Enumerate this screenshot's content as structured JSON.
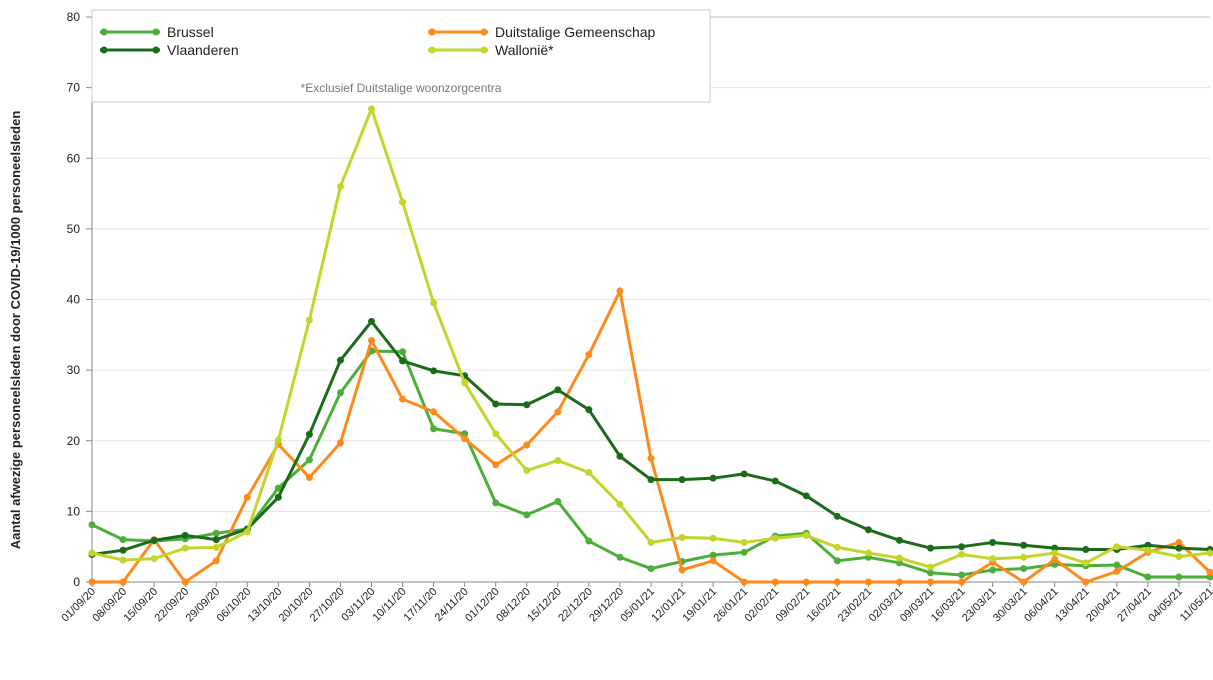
{
  "chart_data": {
    "type": "line",
    "ylabel": "Aantal afwezige personeelsleden door COVID-19/1000 personeelsleden",
    "legend_note": "*Exclusief Duitstalige woonzorgcentra",
    "legend": "upper left",
    "grid": true,
    "categories": [
      "01/09/20",
      "08/09/20",
      "15/09/20",
      "22/09/20",
      "29/09/20",
      "06/10/20",
      "13/10/20",
      "20/10/20",
      "27/10/20",
      "03/11/20",
      "10/11/20",
      "17/11/20",
      "24/11/20",
      "01/12/20",
      "08/12/20",
      "15/12/20",
      "22/12/20",
      "29/12/20",
      "05/01/21",
      "12/01/21",
      "19/01/21",
      "26/01/21",
      "02/02/21",
      "09/02/21",
      "16/02/21",
      "23/02/21",
      "02/03/21",
      "09/03/21",
      "16/03/21",
      "23/03/21",
      "30/03/21",
      "06/04/21",
      "13/04/21",
      "20/04/21",
      "27/04/21",
      "04/05/21",
      "11/05/21"
    ],
    "series": [
      {
        "name": "Brussel",
        "color": "#4caf3a",
        "values": [
          8.1,
          6,
          5.8,
          6.1,
          6.9,
          7.5,
          13.3,
          17.3,
          26.8,
          32.7,
          32.6,
          21.7,
          21,
          11.2,
          9.5,
          11.4,
          5.8,
          3.5,
          1.9,
          2.9,
          3.8,
          4.2,
          6.5,
          6.9,
          3,
          3.5,
          2.7,
          1.3,
          1,
          1.7,
          1.9,
          2.5,
          2.3,
          2.4,
          0.7,
          0.7,
          0.7
        ]
      },
      {
        "name": "Duitstalige Gemeenschap",
        "color": "#ff8a1c",
        "values": [
          0,
          0,
          6,
          0,
          3,
          12,
          19.5,
          14.8,
          19.7,
          34.2,
          25.9,
          24.1,
          20.3,
          16.6,
          19.4,
          24.1,
          32.2,
          41.2,
          17.5,
          1.7,
          3,
          0,
          0,
          0,
          0,
          0,
          0,
          0,
          0,
          2.8,
          0,
          3.2,
          0,
          1.5,
          4.2,
          5.6,
          1.4
        ]
      },
      {
        "name": "Vlaanderen",
        "color": "#1a6b1a",
        "values": [
          3.9,
          4.5,
          5.9,
          6.6,
          6,
          7.5,
          12,
          20.9,
          31.4,
          36.9,
          31.3,
          29.9,
          29.2,
          25.2,
          25.1,
          27.2,
          24.4,
          17.8,
          14.5,
          14.5,
          14.7,
          15.3,
          14.3,
          12.2,
          9.3,
          7.4,
          5.9,
          4.8,
          5.0,
          5.6,
          5.2,
          4.8,
          4.6,
          4.6,
          5.2,
          4.8,
          4.6
        ]
      },
      {
        "name": "Wallonië*",
        "color": "#c3d52a",
        "values": [
          4.1,
          3.1,
          3.3,
          4.8,
          4.9,
          7.1,
          20.1,
          37.1,
          56,
          67,
          53.8,
          39.5,
          28.2,
          21,
          15.8,
          17.2,
          15.5,
          11,
          5.6,
          6.3,
          6.2,
          5.6,
          6.2,
          6.6,
          4.9,
          4.1,
          3.4,
          2.1,
          3.9,
          3.3,
          3.5,
          4.1,
          2.7,
          5,
          4.5,
          3.6,
          4.1
        ]
      }
    ],
    "ylim": [
      0,
      80
    ],
    "yticks": [
      0,
      10,
      20,
      30,
      40,
      50,
      60,
      70,
      80
    ]
  }
}
